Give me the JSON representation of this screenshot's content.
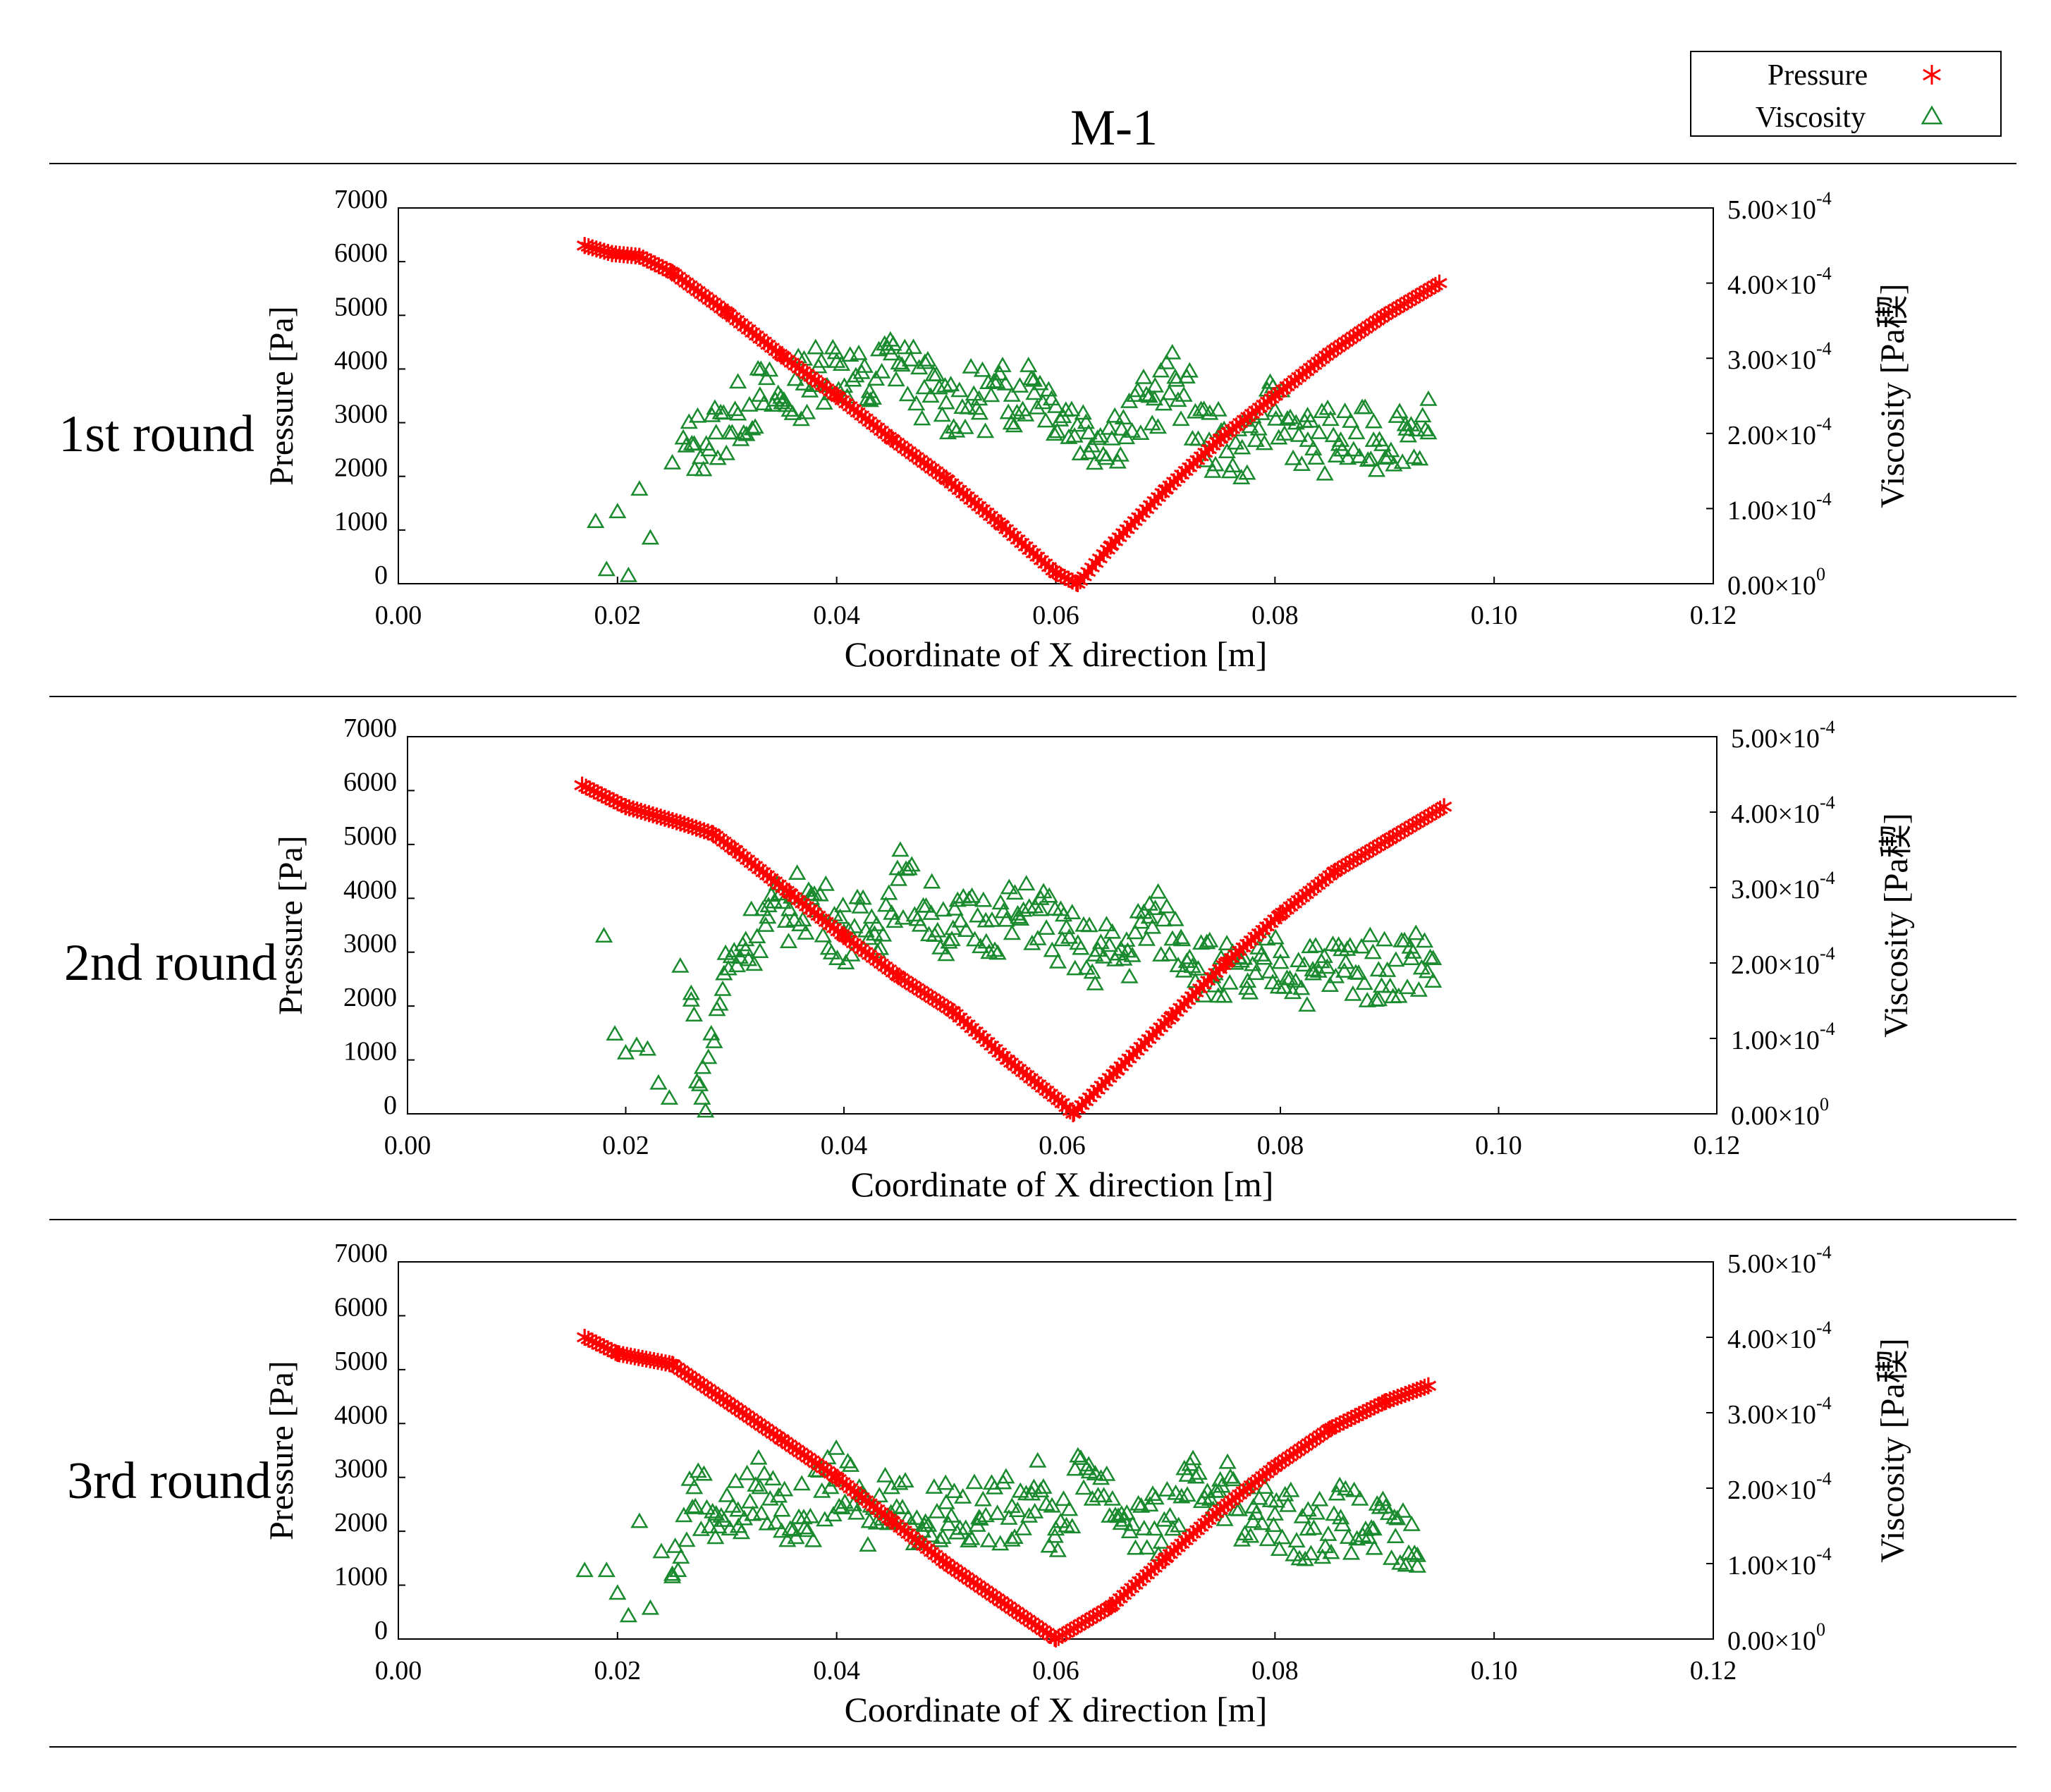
{
  "figure": {
    "title": "M-1",
    "legend": {
      "position": "top-right",
      "entries": [
        {
          "label": "Pressure",
          "marker": "asterisk",
          "color": "#ff0000"
        },
        {
          "label": "Viscosity",
          "marker": "triangle-open",
          "color": "#1a8a2e"
        }
      ]
    },
    "colors": {
      "pressure": "#ff0000",
      "viscosity": "#1a8a2e",
      "axis": "#000000"
    }
  },
  "chart_data": [
    {
      "type": "scatter",
      "row_label": "1st round",
      "xlabel": "Coordinate of X direction [m]",
      "ylabel_left": "Pressure [Pa]",
      "ylabel_right": "Viscosity [Pa稧]",
      "xlim": [
        0.0,
        0.12
      ],
      "ylim_left": [
        0,
        7000
      ],
      "ylim_right": [
        0,
        0.0005
      ],
      "x_ticks": [
        "0.00",
        "0.02",
        "0.04",
        "0.06",
        "0.08",
        "0.10",
        "0.12"
      ],
      "y_left_ticks": [
        "0",
        "1000",
        "2000",
        "3000",
        "4000",
        "5000",
        "6000",
        "7000"
      ],
      "y_right_ticks": [
        {
          "mantissa": "0.00×10",
          "exp": "0"
        },
        {
          "mantissa": "1.00×10",
          "exp": "-4"
        },
        {
          "mantissa": "2.00×10",
          "exp": "-4"
        },
        {
          "mantissa": "3.00×10",
          "exp": "-4"
        },
        {
          "mantissa": "4.00×10",
          "exp": "-4"
        },
        {
          "mantissa": "5.00×10",
          "exp": "-4"
        }
      ],
      "series": [
        {
          "name": "Pressure",
          "axis": "left",
          "x": [
            0.017,
            0.0195,
            0.022,
            0.025,
            0.03,
            0.035,
            0.04,
            0.045,
            0.05,
            0.055,
            0.06,
            0.062,
            0.065,
            0.07,
            0.075,
            0.08,
            0.085,
            0.09,
            0.095
          ],
          "y": [
            6300,
            6150,
            6100,
            5800,
            5050,
            4250,
            3500,
            2700,
            1950,
            1100,
            200,
            0,
            700,
            1750,
            2700,
            3500,
            4300,
            5000,
            5600
          ]
        },
        {
          "name": "Viscosity",
          "axis": "right",
          "x": [
            0.018,
            0.019,
            0.02,
            0.021,
            0.022,
            0.023,
            0.025,
            0.027,
            0.029,
            0.031,
            0.033,
            0.035,
            0.037,
            0.04,
            0.043,
            0.045,
            0.048,
            0.05,
            0.053,
            0.056,
            0.058,
            0.06,
            0.063,
            0.066,
            0.069,
            0.071,
            0.074,
            0.077,
            0.08,
            0.083,
            0.086,
            0.089,
            0.092,
            0.094
          ],
          "y": [
            8.2e-05,
            1.8e-05,
            9.5e-05,
            1e-05,
            0.000125,
            6e-05,
            0.00016,
            0.000185,
            0.0002,
            0.000225,
            0.00025,
            0.00024,
            0.000265,
            0.000295,
            0.000255,
            0.000305,
            0.00026,
            0.00024,
            0.000245,
            0.00025,
            0.00027,
            0.000235,
            0.0002,
            0.000205,
            0.000245,
            0.00027,
            0.00019,
            0.00018,
            0.00023,
            0.00019,
            0.00019,
            0.00019,
            0.000205,
            0.0002
          ]
        }
      ]
    },
    {
      "type": "scatter",
      "row_label": "2nd round",
      "xlabel": "Coordinate of X direction [m]",
      "ylabel_left": "Pressure [Pa]",
      "ylabel_right": "Viscosity [Pa稧]",
      "xlim": [
        0.0,
        0.12
      ],
      "ylim_left": [
        0,
        7000
      ],
      "ylim_right": [
        0,
        0.0005
      ],
      "x_ticks": [
        "0.00",
        "0.02",
        "0.04",
        "0.06",
        "0.08",
        "0.10",
        "0.12"
      ],
      "y_left_ticks": [
        "0",
        "1000",
        "2000",
        "3000",
        "4000",
        "5000",
        "6000",
        "7000"
      ],
      "y_right_ticks": [
        {
          "mantissa": "0.00×10",
          "exp": "0"
        },
        {
          "mantissa": "1.00×10",
          "exp": "-4"
        },
        {
          "mantissa": "2.00×10",
          "exp": "-4"
        },
        {
          "mantissa": "3.00×10",
          "exp": "-4"
        },
        {
          "mantissa": "4.00×10",
          "exp": "-4"
        },
        {
          "mantissa": "5.00×10",
          "exp": "-4"
        }
      ],
      "series": [
        {
          "name": "Pressure",
          "axis": "left",
          "x": [
            0.016,
            0.02,
            0.025,
            0.028,
            0.03,
            0.035,
            0.04,
            0.045,
            0.05,
            0.055,
            0.06,
            0.061,
            0.065,
            0.07,
            0.075,
            0.08,
            0.085,
            0.09,
            0.095
          ],
          "y": [
            6100,
            5700,
            5400,
            5200,
            4900,
            4100,
            3300,
            2550,
            1900,
            1000,
            200,
            0,
            800,
            1800,
            2800,
            3700,
            4500,
            5100,
            5700
          ]
        },
        {
          "name": "Viscosity",
          "axis": "right",
          "x": [
            0.018,
            0.019,
            0.02,
            0.021,
            0.022,
            0.023,
            0.024,
            0.025,
            0.026,
            0.027,
            0.029,
            0.031,
            0.033,
            0.035,
            0.037,
            0.04,
            0.043,
            0.045,
            0.048,
            0.05,
            0.053,
            0.056,
            0.058,
            0.06,
            0.063,
            0.066,
            0.068,
            0.071,
            0.074,
            0.077,
            0.08,
            0.083,
            0.086,
            0.089,
            0.092,
            0.094
          ],
          "y": [
            0.000235,
            0.000105,
            8e-05,
            9e-05,
            8.5e-05,
            4e-05,
            2e-05,
            0.000195,
            0.00015,
            2e-05,
            0.000185,
            0.00023,
            0.00026,
            0.00027,
            0.000285,
            0.00024,
            0.00025,
            0.00031,
            0.000265,
            0.000245,
            0.000255,
            0.00026,
            0.00027,
            0.00023,
            0.00021,
            0.000215,
            0.00026,
            0.00023,
            0.000185,
            0.000175,
            0.0002,
            0.000185,
            0.0002,
            0.00019,
            0.000205,
            0.000205
          ]
        }
      ]
    },
    {
      "type": "scatter",
      "row_label": "3rd round",
      "xlabel": "Coordinate of X direction [m]",
      "ylabel_left": "Pressure [Pa]",
      "ylabel_right": "Viscosity [Pa稧]",
      "xlim": [
        0.0,
        0.12
      ],
      "ylim_left": [
        0,
        7000
      ],
      "ylim_right": [
        0,
        0.0005
      ],
      "x_ticks": [
        "0.00",
        "0.02",
        "0.04",
        "0.06",
        "0.08",
        "0.10",
        "0.12"
      ],
      "y_left_ticks": [
        "0",
        "1000",
        "2000",
        "3000",
        "4000",
        "5000",
        "6000",
        "7000"
      ],
      "y_right_ticks": [
        {
          "mantissa": "0.00×10",
          "exp": "0"
        },
        {
          "mantissa": "1.00×10",
          "exp": "-4"
        },
        {
          "mantissa": "2.00×10",
          "exp": "-4"
        },
        {
          "mantissa": "3.00×10",
          "exp": "-4"
        },
        {
          "mantissa": "4.00×10",
          "exp": "-4"
        },
        {
          "mantissa": "5.00×10",
          "exp": "-4"
        }
      ],
      "series": [
        {
          "name": "Pressure",
          "axis": "left",
          "x": [
            0.017,
            0.02,
            0.025,
            0.03,
            0.035,
            0.04,
            0.045,
            0.05,
            0.055,
            0.06,
            0.065,
            0.07,
            0.075,
            0.08,
            0.085,
            0.09,
            0.094
          ],
          "y": [
            5600,
            5300,
            5100,
            4400,
            3700,
            3000,
            2200,
            1400,
            700,
            0,
            600,
            1500,
            2400,
            3200,
            3900,
            4400,
            4700
          ]
        },
        {
          "name": "Viscosity",
          "axis": "right",
          "x": [
            0.017,
            0.019,
            0.02,
            0.021,
            0.022,
            0.023,
            0.024,
            0.025,
            0.027,
            0.029,
            0.031,
            0.033,
            0.035,
            0.037,
            0.04,
            0.043,
            0.045,
            0.048,
            0.05,
            0.053,
            0.056,
            0.058,
            0.06,
            0.063,
            0.066,
            0.069,
            0.072,
            0.075,
            0.078,
            0.08,
            0.083,
            0.086,
            0.089,
            0.091,
            0.093
          ],
          "y": [
            9e-05,
            9e-05,
            6e-05,
            3e-05,
            0.000155,
            4e-05,
            0.000115,
            8.5e-05,
            0.0002,
            0.000165,
            0.00017,
            0.0002,
            0.00017,
            0.00016,
            0.00021,
            0.000155,
            0.0002,
            0.00015,
            0.00018,
            0.00016,
            0.000175,
            0.0002,
            0.000145,
            0.00023,
            0.000165,
            0.000145,
            0.00019,
            0.00021,
            0.000155,
            0.000165,
            0.000145,
            0.00016,
            0.000145,
            0.000135,
            0.00011
          ]
        }
      ]
    }
  ]
}
